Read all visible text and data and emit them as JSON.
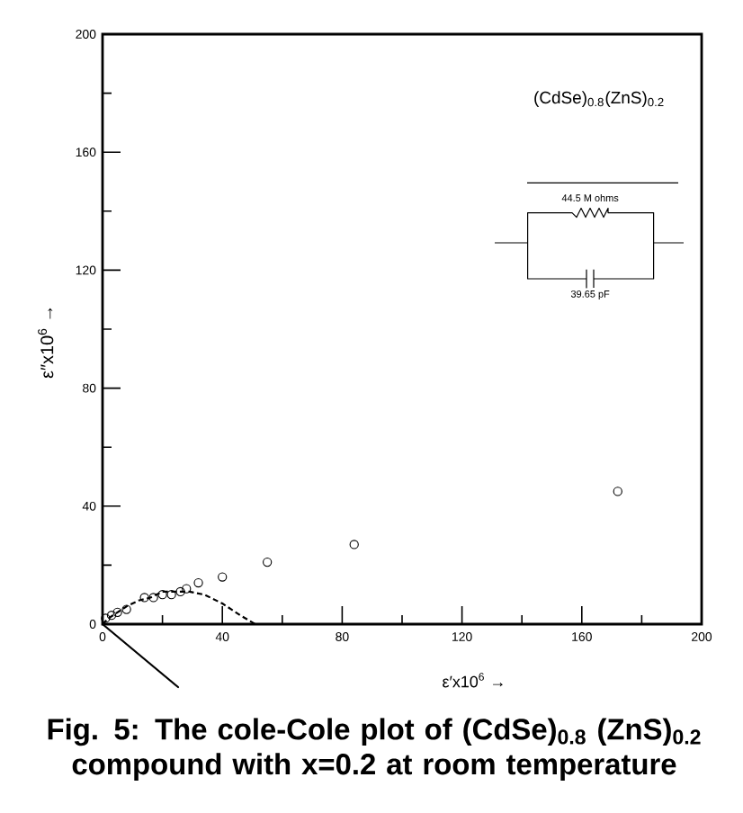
{
  "chart_data": {
    "type": "scatter",
    "title": "Fig. 5: The cole-Cole plot of (CdSe)$_{0.8}$ (ZnS)$_{0.2}$ compound with x=0.2 at room temperature",
    "xlabel": "ε′x10$^{6}$  →",
    "ylabel": "ε″x10$^{6}$  →",
    "annotations": [
      "(CdSe)$_{0.8}$(ZnS)$_{0.2}$",
      "44.5 M ohms",
      "39.65 pF"
    ],
    "xlim": [
      0,
      200
    ],
    "ylim": [
      0,
      200
    ],
    "xticks": [
      0,
      {
        "value": 20,
        "label": null
      },
      40,
      {
        "value": 60,
        "label": null
      },
      80,
      {
        "value": 100,
        "label": null
      },
      120,
      {
        "value": 140,
        "label": null
      },
      160,
      {
        "value": 180,
        "label": null
      },
      200
    ],
    "yticks": [
      0,
      {
        "value": 20,
        "label": null
      },
      40,
      {
        "value": 60,
        "label": null
      },
      80,
      {
        "value": 100,
        "label": null
      },
      120,
      {
        "value": 140,
        "label": null
      },
      160,
      {
        "value": 180,
        "label": null
      },
      200
    ],
    "series": [
      {
        "color": "#000000",
        "marker": "circle",
        "x": [
          1,
          3,
          5,
          8,
          14,
          17,
          20,
          23,
          26,
          28,
          32,
          40,
          55,
          84,
          172
        ],
        "values": [
          2,
          3,
          4,
          5,
          9,
          9,
          10,
          10,
          11,
          12,
          14,
          16,
          21,
          27,
          45
        ]
      },
      {
        "type": "line",
        "color": "#000000",
        "line_style": "dashed",
        "x": [
          0,
          2,
          5,
          8,
          12,
          16,
          20,
          25,
          29,
          34,
          40,
          46,
          51
        ],
        "values": [
          0,
          2,
          4,
          6,
          8,
          9,
          11,
          11,
          11,
          10,
          7,
          3,
          0
        ]
      }
    ]
  }
}
